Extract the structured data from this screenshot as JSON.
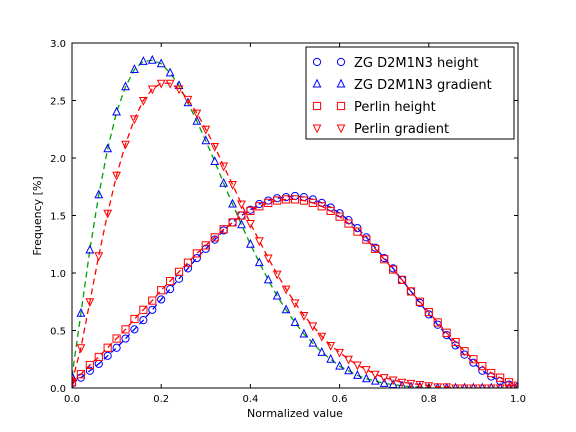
{
  "chart_data": {
    "type": "scatter",
    "xlabel": "Normalized value",
    "ylabel": "Frequency [%]",
    "xlim": [
      0.0,
      1.0
    ],
    "ylim": [
      0.0,
      3.0
    ],
    "x_ticks": [
      "0.0",
      "0.2",
      "0.4",
      "0.6",
      "0.8",
      "1.0"
    ],
    "y_ticks": [
      "0.0",
      "0.5",
      "1.0",
      "1.5",
      "2.0",
      "2.5",
      "3.0"
    ],
    "grid": false,
    "legend_position": "top-right",
    "series": [
      {
        "name": "ZG D2M1N3 height",
        "marker": "circle",
        "color": "#0000ff",
        "fit_line_color": "#0000ff",
        "x": [
          0.0,
          0.02,
          0.04,
          0.06,
          0.08,
          0.1,
          0.12,
          0.14,
          0.16,
          0.18,
          0.2,
          0.22,
          0.24,
          0.26,
          0.28,
          0.3,
          0.32,
          0.34,
          0.36,
          0.38,
          0.4,
          0.42,
          0.44,
          0.46,
          0.48,
          0.5,
          0.52,
          0.54,
          0.56,
          0.58,
          0.6,
          0.62,
          0.64,
          0.66,
          0.68,
          0.7,
          0.72,
          0.74,
          0.76,
          0.78,
          0.8,
          0.82,
          0.84,
          0.86,
          0.88,
          0.9,
          0.92,
          0.94,
          0.96,
          0.98,
          1.0
        ],
        "y": [
          0.04,
          0.09,
          0.15,
          0.21,
          0.28,
          0.35,
          0.43,
          0.51,
          0.59,
          0.68,
          0.77,
          0.86,
          0.95,
          1.04,
          1.13,
          1.21,
          1.29,
          1.37,
          1.44,
          1.5,
          1.55,
          1.6,
          1.63,
          1.65,
          1.66,
          1.67,
          1.66,
          1.64,
          1.61,
          1.57,
          1.52,
          1.46,
          1.39,
          1.31,
          1.22,
          1.13,
          1.04,
          0.94,
          0.84,
          0.74,
          0.64,
          0.55,
          0.46,
          0.37,
          0.29,
          0.22,
          0.15,
          0.1,
          0.06,
          0.03,
          0.01
        ]
      },
      {
        "name": "ZG D2M1N3 gradient",
        "marker": "triangle-up",
        "color": "#0000ff",
        "fit_line_color": "#00a000",
        "x": [
          0.0,
          0.02,
          0.04,
          0.06,
          0.08,
          0.1,
          0.12,
          0.14,
          0.16,
          0.18,
          0.2,
          0.22,
          0.24,
          0.26,
          0.28,
          0.3,
          0.32,
          0.34,
          0.36,
          0.38,
          0.4,
          0.42,
          0.44,
          0.46,
          0.48,
          0.5,
          0.52,
          0.54,
          0.56,
          0.58,
          0.6,
          0.62,
          0.64,
          0.66,
          0.68,
          0.7,
          0.72,
          0.74,
          0.76,
          0.78,
          0.8,
          0.82,
          0.84,
          0.86,
          0.88,
          0.9,
          0.92,
          0.94,
          0.96,
          0.98,
          1.0
        ],
        "y": [
          0.1,
          0.65,
          1.2,
          1.68,
          2.08,
          2.4,
          2.62,
          2.77,
          2.84,
          2.85,
          2.82,
          2.74,
          2.63,
          2.48,
          2.32,
          2.15,
          1.97,
          1.78,
          1.6,
          1.42,
          1.25,
          1.09,
          0.94,
          0.8,
          0.68,
          0.57,
          0.47,
          0.39,
          0.31,
          0.25,
          0.19,
          0.15,
          0.11,
          0.08,
          0.06,
          0.04,
          0.03,
          0.02,
          0.01,
          0.01,
          0.0,
          0.0,
          0.0,
          0.0,
          0.0,
          0.0,
          0.0,
          0.0,
          0.0,
          0.0,
          0.0
        ]
      },
      {
        "name": "Perlin height",
        "marker": "square",
        "color": "#ff0000",
        "fit_line_color": "#ff0000",
        "x": [
          0.0,
          0.02,
          0.04,
          0.06,
          0.08,
          0.1,
          0.12,
          0.14,
          0.16,
          0.18,
          0.2,
          0.22,
          0.24,
          0.26,
          0.28,
          0.3,
          0.32,
          0.34,
          0.36,
          0.38,
          0.4,
          0.42,
          0.44,
          0.46,
          0.48,
          0.5,
          0.52,
          0.54,
          0.56,
          0.58,
          0.6,
          0.62,
          0.64,
          0.66,
          0.68,
          0.7,
          0.72,
          0.74,
          0.76,
          0.78,
          0.8,
          0.82,
          0.84,
          0.86,
          0.88,
          0.9,
          0.92,
          0.94,
          0.96,
          0.98,
          1.0
        ],
        "y": [
          0.05,
          0.12,
          0.2,
          0.27,
          0.35,
          0.43,
          0.51,
          0.6,
          0.68,
          0.76,
          0.85,
          0.93,
          1.01,
          1.09,
          1.17,
          1.24,
          1.31,
          1.38,
          1.44,
          1.5,
          1.54,
          1.58,
          1.61,
          1.63,
          1.64,
          1.64,
          1.63,
          1.61,
          1.58,
          1.54,
          1.49,
          1.43,
          1.36,
          1.29,
          1.21,
          1.12,
          1.03,
          0.94,
          0.84,
          0.75,
          0.66,
          0.57,
          0.48,
          0.4,
          0.32,
          0.25,
          0.19,
          0.13,
          0.09,
          0.05,
          0.02
        ]
      },
      {
        "name": "Perlin gradient",
        "marker": "triangle-down",
        "color": "#ff0000",
        "fit_line_color": "#ff0000",
        "x": [
          0.0,
          0.02,
          0.04,
          0.06,
          0.08,
          0.1,
          0.12,
          0.14,
          0.16,
          0.18,
          0.2,
          0.22,
          0.24,
          0.26,
          0.28,
          0.3,
          0.32,
          0.34,
          0.36,
          0.38,
          0.4,
          0.42,
          0.44,
          0.46,
          0.48,
          0.5,
          0.52,
          0.54,
          0.56,
          0.58,
          0.6,
          0.62,
          0.64,
          0.66,
          0.68,
          0.7,
          0.72,
          0.74,
          0.76,
          0.78,
          0.8,
          0.82,
          0.84,
          0.86,
          0.88,
          0.9,
          0.92,
          0.94,
          0.96,
          0.98,
          1.0
        ],
        "y": [
          0.05,
          0.35,
          0.75,
          1.15,
          1.52,
          1.85,
          2.12,
          2.34,
          2.5,
          2.6,
          2.65,
          2.65,
          2.6,
          2.51,
          2.39,
          2.25,
          2.1,
          1.93,
          1.77,
          1.6,
          1.43,
          1.28,
          1.13,
          0.99,
          0.86,
          0.74,
          0.63,
          0.54,
          0.45,
          0.37,
          0.31,
          0.25,
          0.2,
          0.16,
          0.12,
          0.09,
          0.07,
          0.05,
          0.04,
          0.03,
          0.02,
          0.01,
          0.01,
          0.0,
          0.0,
          0.0,
          0.0,
          0.0,
          0.0,
          0.0,
          0.0
        ]
      }
    ]
  }
}
